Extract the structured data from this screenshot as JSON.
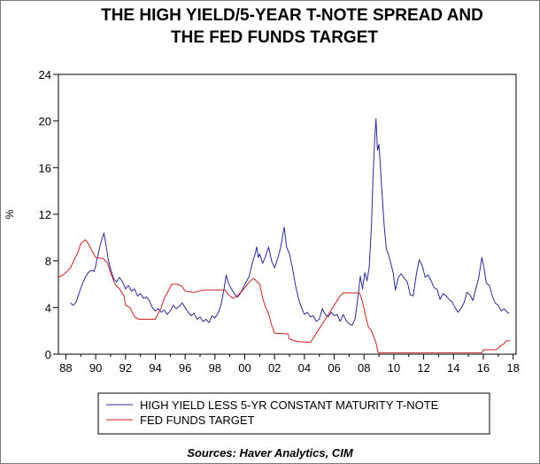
{
  "title_line1": "THE HIGH YIELD/5-YEAR T-NOTE SPREAD AND",
  "title_line2": "THE FED FUNDS TARGET",
  "source": "Sources:  Haver Analytics, CIM",
  "colors": {
    "spread": "#2a2a9c",
    "fed": "#cc2222",
    "axis": "#000000"
  },
  "chart_data": {
    "type": "line",
    "title": "THE HIGH YIELD/5-YEAR T-NOTE SPREAD AND THE FED FUNDS TARGET",
    "ylabel": "%",
    "xlabel": "",
    "xlim": [
      1987.5,
      2018.2
    ],
    "ylim": [
      0,
      24
    ],
    "y_ticks": [
      0,
      4,
      8,
      12,
      16,
      20,
      24
    ],
    "x_ticks": [
      {
        "value": 1988,
        "label": "88"
      },
      {
        "value": 1990,
        "label": "90"
      },
      {
        "value": 1992,
        "label": "92"
      },
      {
        "value": 1994,
        "label": "94"
      },
      {
        "value": 1996,
        "label": "96"
      },
      {
        "value": 1998,
        "label": "98"
      },
      {
        "value": 2000,
        "label": "00"
      },
      {
        "value": 2002,
        "label": "02"
      },
      {
        "value": 2004,
        "label": "04"
      },
      {
        "value": 2006,
        "label": "06"
      },
      {
        "value": 2008,
        "label": "08"
      },
      {
        "value": 2010,
        "label": "10"
      },
      {
        "value": 2012,
        "label": "12"
      },
      {
        "value": 2014,
        "label": "14"
      },
      {
        "value": 2016,
        "label": "16"
      },
      {
        "value": 2018,
        "label": "18"
      }
    ],
    "grid": false,
    "legend_position": "bottom",
    "series": [
      {
        "name": "HIGH YIELD LESS 5-YR CONSTANT MATURITY T-NOTE",
        "color": "#2a2a9c",
        "points": [
          [
            1988.3,
            4.4
          ],
          [
            1988.5,
            4.2
          ],
          [
            1988.7,
            4.5
          ],
          [
            1988.9,
            5.3
          ],
          [
            1989.1,
            6.0
          ],
          [
            1989.3,
            6.6
          ],
          [
            1989.5,
            7.0
          ],
          [
            1989.7,
            7.2
          ],
          [
            1989.9,
            7.1
          ],
          [
            1990.0,
            7.6
          ],
          [
            1990.2,
            8.8
          ],
          [
            1990.4,
            9.8
          ],
          [
            1990.55,
            10.4
          ],
          [
            1990.7,
            9.3
          ],
          [
            1990.85,
            8.1
          ],
          [
            1991.0,
            7.3
          ],
          [
            1991.2,
            6.5
          ],
          [
            1991.4,
            6.2
          ],
          [
            1991.6,
            6.6
          ],
          [
            1991.8,
            6.2
          ],
          [
            1992.0,
            5.6
          ],
          [
            1992.2,
            5.9
          ],
          [
            1992.4,
            5.4
          ],
          [
            1992.6,
            5.6
          ],
          [
            1992.8,
            5.0
          ],
          [
            1993.0,
            5.2
          ],
          [
            1993.2,
            4.8
          ],
          [
            1993.4,
            4.9
          ],
          [
            1993.6,
            4.6
          ],
          [
            1993.8,
            4.0
          ],
          [
            1994.0,
            3.7
          ],
          [
            1994.2,
            3.9
          ],
          [
            1994.4,
            3.6
          ],
          [
            1994.6,
            3.8
          ],
          [
            1994.8,
            3.4
          ],
          [
            1995.0,
            3.7
          ],
          [
            1995.2,
            4.2
          ],
          [
            1995.4,
            3.9
          ],
          [
            1995.6,
            4.1
          ],
          [
            1995.8,
            4.4
          ],
          [
            1996.0,
            4.0
          ],
          [
            1996.2,
            3.6
          ],
          [
            1996.4,
            3.3
          ],
          [
            1996.6,
            3.5
          ],
          [
            1996.8,
            3.0
          ],
          [
            1997.0,
            3.2
          ],
          [
            1997.2,
            2.8
          ],
          [
            1997.4,
            3.0
          ],
          [
            1997.6,
            2.7
          ],
          [
            1997.8,
            3.3
          ],
          [
            1998.0,
            3.1
          ],
          [
            1998.2,
            3.5
          ],
          [
            1998.4,
            4.2
          ],
          [
            1998.6,
            5.5
          ],
          [
            1998.75,
            6.8
          ],
          [
            1998.9,
            6.1
          ],
          [
            1999.1,
            5.6
          ],
          [
            1999.3,
            5.2
          ],
          [
            1999.5,
            4.9
          ],
          [
            1999.7,
            5.2
          ],
          [
            1999.9,
            5.7
          ],
          [
            2000.1,
            6.2
          ],
          [
            2000.3,
            6.7
          ],
          [
            2000.5,
            7.8
          ],
          [
            2000.7,
            8.6
          ],
          [
            2000.8,
            9.2
          ],
          [
            2000.9,
            8.3
          ],
          [
            2001.0,
            8.6
          ],
          [
            2001.2,
            7.8
          ],
          [
            2001.4,
            8.4
          ],
          [
            2001.6,
            9.2
          ],
          [
            2001.8,
            8.0
          ],
          [
            2002.0,
            7.4
          ],
          [
            2002.2,
            8.2
          ],
          [
            2002.4,
            9.1
          ],
          [
            2002.55,
            10.2
          ],
          [
            2002.65,
            10.9
          ],
          [
            2002.8,
            9.2
          ],
          [
            2003.0,
            8.6
          ],
          [
            2003.2,
            7.4
          ],
          [
            2003.4,
            5.9
          ],
          [
            2003.6,
            4.8
          ],
          [
            2003.8,
            4.0
          ],
          [
            2004.0,
            3.4
          ],
          [
            2004.2,
            3.6
          ],
          [
            2004.4,
            3.2
          ],
          [
            2004.6,
            3.3
          ],
          [
            2004.8,
            2.8
          ],
          [
            2005.0,
            3.0
          ],
          [
            2005.2,
            3.9
          ],
          [
            2005.4,
            3.4
          ],
          [
            2005.6,
            3.2
          ],
          [
            2005.8,
            3.6
          ],
          [
            2006.0,
            3.3
          ],
          [
            2006.2,
            3.4
          ],
          [
            2006.4,
            2.8
          ],
          [
            2006.6,
            3.4
          ],
          [
            2006.8,
            2.9
          ],
          [
            2007.0,
            2.6
          ],
          [
            2007.2,
            2.5
          ],
          [
            2007.4,
            3.0
          ],
          [
            2007.6,
            5.0
          ],
          [
            2007.75,
            6.7
          ],
          [
            2007.9,
            5.6
          ],
          [
            2008.05,
            7.0
          ],
          [
            2008.2,
            6.3
          ],
          [
            2008.35,
            7.5
          ],
          [
            2008.5,
            11.0
          ],
          [
            2008.6,
            15.0
          ],
          [
            2008.7,
            18.0
          ],
          [
            2008.8,
            20.2
          ],
          [
            2008.85,
            19.0
          ],
          [
            2008.9,
            17.5
          ],
          [
            2009.0,
            18.0
          ],
          [
            2009.1,
            16.0
          ],
          [
            2009.2,
            14.0
          ],
          [
            2009.35,
            11.0
          ],
          [
            2009.5,
            9.0
          ],
          [
            2009.65,
            8.5
          ],
          [
            2009.8,
            7.8
          ],
          [
            2009.95,
            7.0
          ],
          [
            2010.1,
            5.5
          ],
          [
            2010.3,
            6.6
          ],
          [
            2010.5,
            6.9
          ],
          [
            2010.7,
            6.5
          ],
          [
            2010.9,
            6.2
          ],
          [
            2011.1,
            5.1
          ],
          [
            2011.3,
            5.0
          ],
          [
            2011.5,
            6.8
          ],
          [
            2011.7,
            8.1
          ],
          [
            2011.9,
            7.6
          ],
          [
            2012.1,
            6.6
          ],
          [
            2012.3,
            6.8
          ],
          [
            2012.5,
            6.3
          ],
          [
            2012.7,
            5.7
          ],
          [
            2012.9,
            5.6
          ],
          [
            2013.1,
            4.7
          ],
          [
            2013.3,
            5.2
          ],
          [
            2013.5,
            5.0
          ],
          [
            2013.7,
            4.7
          ],
          [
            2013.9,
            4.5
          ],
          [
            2014.1,
            4.0
          ],
          [
            2014.3,
            3.6
          ],
          [
            2014.5,
            3.9
          ],
          [
            2014.7,
            4.4
          ],
          [
            2014.9,
            5.3
          ],
          [
            2015.1,
            5.1
          ],
          [
            2015.3,
            4.6
          ],
          [
            2015.5,
            5.6
          ],
          [
            2015.7,
            6.6
          ],
          [
            2015.9,
            8.3
          ],
          [
            2016.05,
            7.4
          ],
          [
            2016.2,
            6.1
          ],
          [
            2016.4,
            5.9
          ],
          [
            2016.6,
            5.0
          ],
          [
            2016.8,
            4.4
          ],
          [
            2017.0,
            4.2
          ],
          [
            2017.2,
            3.7
          ],
          [
            2017.4,
            3.9
          ],
          [
            2017.6,
            3.6
          ],
          [
            2017.75,
            3.5
          ]
        ]
      },
      {
        "name": "FED FUNDS TARGET",
        "color": "#cc2222",
        "points": [
          [
            1987.5,
            6.6
          ],
          [
            1987.8,
            6.8
          ],
          [
            1988.0,
            7.0
          ],
          [
            1988.3,
            7.4
          ],
          [
            1988.6,
            8.2
          ],
          [
            1988.8,
            8.7
          ],
          [
            1989.0,
            9.5
          ],
          [
            1989.3,
            9.8
          ],
          [
            1989.5,
            9.5
          ],
          [
            1989.7,
            9.0
          ],
          [
            1990.0,
            8.3
          ],
          [
            1990.5,
            8.2
          ],
          [
            1990.8,
            7.8
          ],
          [
            1991.0,
            7.0
          ],
          [
            1991.3,
            6.0
          ],
          [
            1991.6,
            5.6
          ],
          [
            1991.9,
            5.0
          ],
          [
            1992.0,
            4.2
          ],
          [
            1992.3,
            4.0
          ],
          [
            1992.6,
            3.2
          ],
          [
            1992.9,
            3.0
          ],
          [
            1994.0,
            3.0
          ],
          [
            1994.2,
            3.5
          ],
          [
            1994.4,
            4.0
          ],
          [
            1994.6,
            4.8
          ],
          [
            1994.9,
            5.5
          ],
          [
            1995.1,
            6.0
          ],
          [
            1995.5,
            6.0
          ],
          [
            1995.8,
            5.8
          ],
          [
            1996.0,
            5.4
          ],
          [
            1996.6,
            5.3
          ],
          [
            1997.2,
            5.5
          ],
          [
            1998.7,
            5.5
          ],
          [
            1998.9,
            5.1
          ],
          [
            1999.2,
            4.8
          ],
          [
            1999.5,
            5.0
          ],
          [
            1999.8,
            5.4
          ],
          [
            2000.0,
            5.7
          ],
          [
            2000.3,
            6.2
          ],
          [
            2000.6,
            6.5
          ],
          [
            2001.0,
            6.0
          ],
          [
            2001.2,
            4.8
          ],
          [
            2001.4,
            4.0
          ],
          [
            2001.6,
            3.5
          ],
          [
            2001.8,
            2.5
          ],
          [
            2002.0,
            1.8
          ],
          [
            2002.9,
            1.75
          ],
          [
            2003.0,
            1.3
          ],
          [
            2003.5,
            1.1
          ],
          [
            2004.4,
            1.0
          ],
          [
            2004.6,
            1.4
          ],
          [
            2004.9,
            2.0
          ],
          [
            2005.2,
            2.6
          ],
          [
            2005.5,
            3.2
          ],
          [
            2005.8,
            3.8
          ],
          [
            2006.1,
            4.4
          ],
          [
            2006.4,
            5.0
          ],
          [
            2006.6,
            5.25
          ],
          [
            2007.7,
            5.25
          ],
          [
            2007.9,
            4.5
          ],
          [
            2008.1,
            3.3
          ],
          [
            2008.3,
            2.3
          ],
          [
            2008.5,
            2.0
          ],
          [
            2008.8,
            1.0
          ],
          [
            2008.95,
            0.12
          ],
          [
            2015.9,
            0.12
          ],
          [
            2016.0,
            0.37
          ],
          [
            2016.9,
            0.4
          ],
          [
            2017.1,
            0.65
          ],
          [
            2017.4,
            0.9
          ],
          [
            2017.55,
            1.15
          ],
          [
            2017.8,
            1.15
          ]
        ]
      }
    ]
  }
}
